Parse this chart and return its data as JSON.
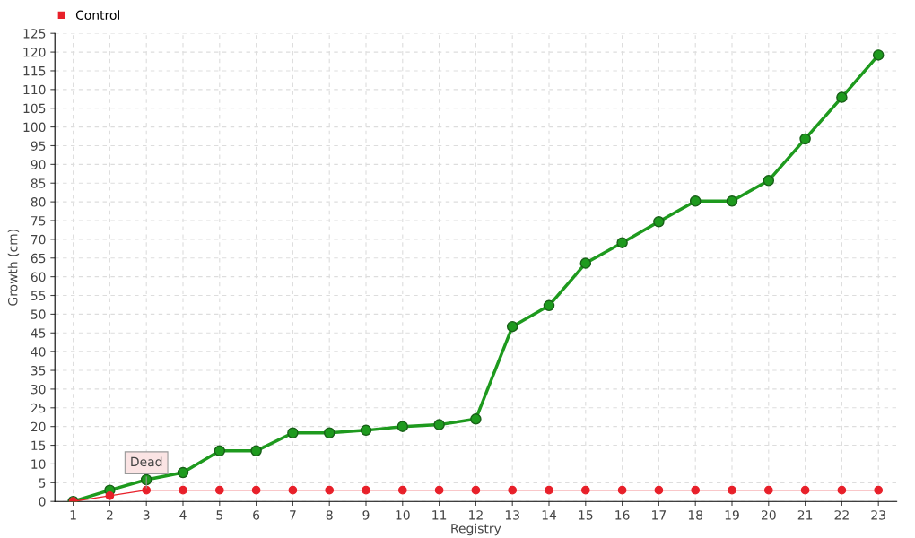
{
  "chart_data": {
    "type": "line",
    "xlabel": "Registry",
    "ylabel": "Growth (cm)",
    "categories": [
      "1",
      "2",
      "3",
      "4",
      "5",
      "6",
      "7",
      "8",
      "9",
      "10",
      "11",
      "12",
      "13",
      "14",
      "15",
      "16",
      "17",
      "18",
      "19",
      "20",
      "21",
      "22",
      "23"
    ],
    "series": [
      {
        "color": "#1e9a1e",
        "values": [
          0,
          3,
          5.8,
          7.7,
          13.5,
          13.5,
          18.3,
          18.3,
          19,
          20,
          20.5,
          22,
          46.7,
          52.3,
          63.6,
          69.1,
          74.7,
          80.2,
          80.2,
          85.7,
          96.8,
          107.9,
          119.2
        ]
      },
      {
        "name": "Control",
        "color": "#e8202a",
        "values": [
          0,
          1.5,
          3,
          3,
          3,
          3,
          3,
          3,
          3,
          3,
          3,
          3,
          3,
          3,
          3,
          3,
          3,
          3,
          3,
          3,
          3,
          3,
          3
        ]
      }
    ],
    "ylim": [
      0,
      125
    ],
    "yticks": [
      0,
      5,
      10,
      15,
      20,
      25,
      30,
      35,
      40,
      45,
      50,
      55,
      60,
      65,
      70,
      75,
      80,
      85,
      90,
      95,
      100,
      105,
      110,
      115,
      120,
      125
    ],
    "annotations": [
      {
        "text": "Dead",
        "x": "3",
        "y": 3
      }
    ],
    "grid": true,
    "legend": "top left",
    "marker": "circle",
    "line_style": "solid"
  }
}
